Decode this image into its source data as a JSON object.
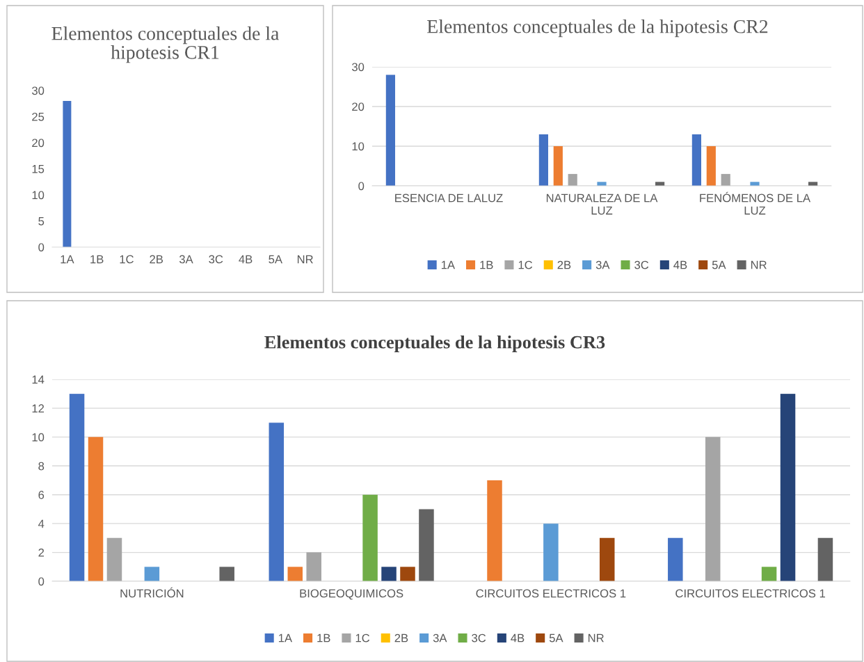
{
  "chart_data": [
    {
      "type": "bar",
      "title": "Elementos conceptuales de la\nhipotesis CR1",
      "categories": [
        "1A",
        "1B",
        "1C",
        "2B",
        "3A",
        "3C",
        "4B",
        "5A",
        "NR"
      ],
      "values": [
        28,
        0,
        0,
        0,
        0,
        0,
        0,
        0,
        0
      ],
      "color": "#4472c4",
      "ylim": [
        0,
        30
      ],
      "yticks": [
        0,
        5,
        10,
        15,
        20,
        25,
        30
      ],
      "grid": false,
      "legend": false
    },
    {
      "type": "bar",
      "title": "Elementos conceptuales de la hipotesis CR2",
      "categories": [
        "ESENCIA DE LALUZ",
        "NATURALEZA DE LA\nLUZ",
        "FENÓMENOS DE LA\nLUZ"
      ],
      "ylim": [
        0,
        30
      ],
      "yticks": [
        0,
        10,
        20,
        30
      ],
      "grid": "y",
      "legend": "bottom",
      "series": [
        {
          "name": "1A",
          "color": "#4472c4",
          "values": [
            28,
            13,
            13
          ]
        },
        {
          "name": "1B",
          "color": "#ed7d31",
          "values": [
            0,
            10,
            10
          ]
        },
        {
          "name": "1C",
          "color": "#a5a5a5",
          "values": [
            0,
            3,
            3
          ]
        },
        {
          "name": "2B",
          "color": "#ffc000",
          "values": [
            0,
            0,
            0
          ]
        },
        {
          "name": "3A",
          "color": "#5b9bd5",
          "values": [
            0,
            1,
            1
          ]
        },
        {
          "name": "3C",
          "color": "#70ad47",
          "values": [
            0,
            0,
            0
          ]
        },
        {
          "name": "4B",
          "color": "#264478",
          "values": [
            0,
            0,
            0
          ]
        },
        {
          "name": "5A",
          "color": "#9e480e",
          "values": [
            0,
            0,
            0
          ]
        },
        {
          "name": "NR",
          "color": "#636363",
          "values": [
            0,
            1,
            1
          ]
        }
      ]
    },
    {
      "type": "bar",
      "title": "Elementos conceptuales de la hipotesis CR3",
      "categories": [
        "NUTRICIÓN",
        "BIOGEOQUIMICOS",
        "CIRCUITOS ELECTRICOS 1",
        "CIRCUITOS ELECTRICOS 1"
      ],
      "ylim": [
        0,
        14
      ],
      "yticks": [
        0,
        2,
        4,
        6,
        8,
        10,
        12,
        14
      ],
      "grid": "y",
      "legend": "bottom",
      "series": [
        {
          "name": "1A",
          "color": "#4472c4",
          "values": [
            13,
            11,
            0,
            3
          ]
        },
        {
          "name": "1B",
          "color": "#ed7d31",
          "values": [
            10,
            1,
            7,
            0
          ]
        },
        {
          "name": "1C",
          "color": "#a5a5a5",
          "values": [
            3,
            2,
            0,
            10
          ]
        },
        {
          "name": "2B",
          "color": "#ffc000",
          "values": [
            0,
            0,
            0,
            0
          ]
        },
        {
          "name": "3A",
          "color": "#5b9bd5",
          "values": [
            1,
            0,
            4,
            0
          ]
        },
        {
          "name": "3C",
          "color": "#70ad47",
          "values": [
            0,
            6,
            0,
            1
          ]
        },
        {
          "name": "4B",
          "color": "#264478",
          "values": [
            0,
            1,
            0,
            13
          ]
        },
        {
          "name": "5A",
          "color": "#9e480e",
          "values": [
            0,
            1,
            3,
            0
          ]
        },
        {
          "name": "NR",
          "color": "#636363",
          "values": [
            1,
            5,
            0,
            3
          ]
        }
      ]
    }
  ]
}
